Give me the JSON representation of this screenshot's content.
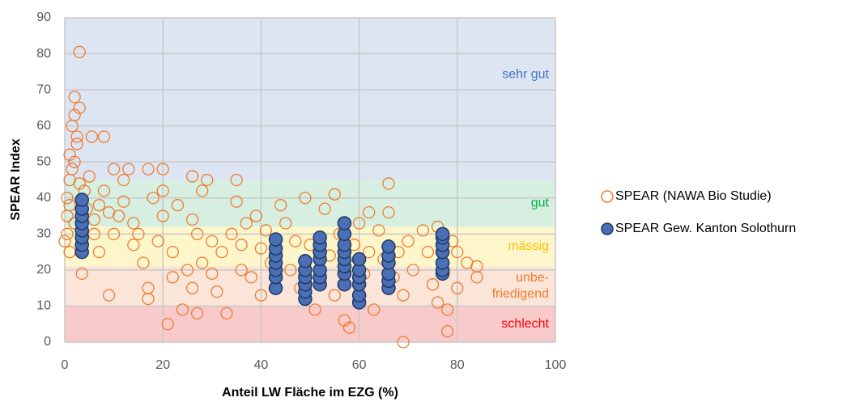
{
  "chart_data": {
    "type": "scatter",
    "xlabel": "Anteil LW Fläche im EZG (%)",
    "ylabel": "SPEAR Index",
    "xlim": [
      0,
      100
    ],
    "xticks": [
      0,
      20,
      40,
      60,
      80,
      100
    ],
    "ylim": [
      0,
      90
    ],
    "yticks": [
      0,
      10,
      20,
      30,
      40,
      50,
      60,
      70,
      80,
      90
    ],
    "grid": true,
    "legend": "right",
    "bands": [
      {
        "label": "sehr gut",
        "from": 45,
        "to": 90,
        "color": "#dde5f3",
        "text_color": "#4472c4"
      },
      {
        "label": "gut",
        "from": 32,
        "to": 45,
        "color": "#d6efe0",
        "text_color": "#00b050"
      },
      {
        "label": "mässig",
        "from": 21,
        "to": 32,
        "color": "#fdf6cb",
        "text_color": "#ffc000"
      },
      {
        "label": [
          "unbe-",
          "friedigend"
        ],
        "from": 10,
        "to": 21,
        "color": "#fbe4d8",
        "text_color": "#ed7d31"
      },
      {
        "label": "schlecht",
        "from": 0,
        "to": 10,
        "color": "#f9caca",
        "text_color": "#ff0000"
      }
    ],
    "series": [
      {
        "name": "SPEAR (NAWA Bio Studie)",
        "color": "#ed7d31",
        "filled": false,
        "x": [
          1,
          1.5,
          2,
          2,
          2.5,
          3,
          1,
          0.5,
          0.5,
          0,
          0.5,
          1,
          1.5,
          2,
          2.5,
          3,
          3,
          2,
          1,
          3.5,
          4,
          4.5,
          5,
          5.5,
          6,
          6,
          7,
          7,
          8,
          8,
          9,
          9,
          10,
          10,
          11,
          12,
          12,
          13,
          14,
          14,
          15,
          16,
          17,
          17,
          17,
          18,
          19,
          20,
          20,
          20,
          21,
          22,
          22,
          23,
          24,
          25,
          26,
          26,
          26,
          27,
          27,
          28,
          28,
          29,
          30,
          30,
          31,
          32,
          33,
          34,
          35,
          35,
          36,
          36,
          37,
          38,
          39,
          40,
          40,
          41,
          42,
          44,
          45,
          46,
          47,
          48,
          49,
          50,
          51,
          53,
          54,
          55,
          55,
          56,
          57,
          58,
          58,
          59,
          60,
          61,
          62,
          62,
          63,
          64,
          65,
          66,
          66,
          67,
          68,
          69,
          69,
          70,
          71,
          73,
          74,
          75,
          76,
          76,
          77,
          78,
          78,
          79,
          80,
          80,
          82,
          84,
          84
        ],
        "values": [
          52,
          60,
          68,
          63,
          57,
          65,
          45,
          40,
          35,
          28,
          30,
          38,
          48,
          50,
          55,
          80.5,
          44,
          33,
          25,
          19,
          42,
          37,
          46,
          57,
          34,
          30,
          38,
          25,
          42,
          57,
          36,
          13,
          48,
          30,
          35,
          45,
          39,
          48,
          33,
          27,
          30,
          22,
          48,
          15,
          12,
          40,
          28,
          48,
          35,
          42,
          5,
          25,
          18,
          38,
          9,
          20,
          46,
          34,
          15,
          30,
          8,
          42,
          22,
          45,
          28,
          19,
          14,
          25,
          8,
          30,
          39,
          45,
          20,
          27,
          33,
          18,
          35,
          26,
          13,
          31,
          22,
          38,
          33,
          20,
          28,
          15,
          40,
          27,
          9,
          37,
          24,
          41,
          13,
          30,
          6,
          4,
          21,
          27,
          33,
          19,
          36,
          25,
          9,
          31,
          23,
          44,
          36,
          18,
          25,
          13,
          0,
          28,
          20,
          31,
          25,
          16,
          11,
          32,
          22,
          9,
          3,
          28,
          15,
          25,
          22,
          18,
          21
        ]
      },
      {
        "name": "SPEAR Gew. Kanton Solothurn",
        "color": "#4a6fb5",
        "filled": true,
        "x": [
          3.5,
          3.5,
          3.5,
          3.5,
          3.5,
          3.5,
          3.5,
          3.5,
          43,
          43,
          43,
          43,
          43,
          43,
          43,
          49,
          49,
          49,
          49,
          49,
          49,
          52,
          52,
          52,
          52,
          52,
          52,
          52,
          57,
          57,
          57,
          57,
          57,
          57,
          57,
          57,
          60,
          60,
          60,
          60,
          60,
          60,
          66,
          66,
          66,
          66,
          66,
          66,
          77,
          77,
          77,
          77,
          77,
          77,
          77
        ],
        "values": [
          25,
          27,
          29,
          31,
          33,
          35,
          37,
          39.5,
          15,
          18,
          20,
          22,
          24,
          26,
          28.5,
          12,
          14,
          16,
          18,
          20,
          22.5,
          16,
          18,
          20,
          23,
          25,
          27,
          29,
          16,
          19,
          21,
          23,
          25,
          27,
          30,
          33,
          11,
          13,
          16,
          18,
          20,
          23,
          15,
          17,
          19,
          22,
          24,
          26.5,
          19,
          20,
          22,
          25,
          27,
          29,
          30
        ]
      }
    ]
  }
}
